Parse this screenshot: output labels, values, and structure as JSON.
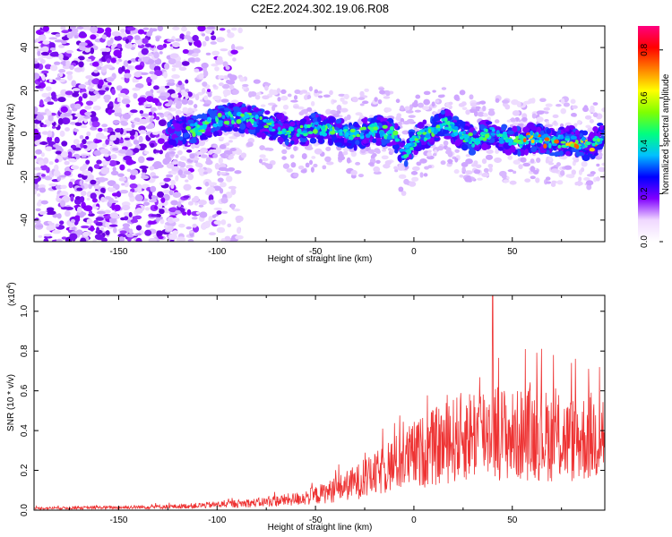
{
  "title": "C2E2.2024.302.19.06.R08",
  "chart_data": [
    {
      "type": "heatmap",
      "xlabel": "Height of straight line (km)",
      "ylabel": "Frequency (Hz)",
      "xlim": [
        -193,
        97
      ],
      "ylim": [
        -50,
        50
      ],
      "xticks": [
        -150,
        -100,
        -50,
        0,
        50
      ],
      "yticks": [
        -40,
        -20,
        0,
        20,
        40
      ],
      "colorbar": {
        "label": "Normalized spectral amplitude",
        "range": [
          0,
          0.9
        ],
        "ticks": [
          "0.0",
          "0.2",
          "0.4",
          "0.6",
          "0.8"
        ],
        "colormap": [
          "#ffffff",
          "#f0d8ff",
          "#8000ff",
          "#0000ff",
          "#00c0ff",
          "#00ff80",
          "#80ff00",
          "#ffff00",
          "#ff8000",
          "#ff0000",
          "#ff0080"
        ]
      },
      "ridge": {
        "x": [
          -125,
          -110,
          -100,
          -90,
          -80,
          -70,
          -60,
          -50,
          -40,
          -30,
          -20,
          -10,
          -5,
          0,
          10,
          15,
          20,
          30,
          40,
          50,
          60,
          70,
          80,
          90,
          95
        ],
        "y": [
          0,
          2,
          6,
          8,
          6,
          3,
          0,
          3,
          1,
          -1,
          2,
          0,
          -10,
          -3,
          2,
          6,
          2,
          -3,
          1,
          -4,
          -2,
          -4,
          -3,
          -6,
          -1
        ]
      },
      "noise_region_x": [
        -193,
        -125
      ],
      "grid": false
    },
    {
      "type": "line",
      "xlabel": "Height of straight line (km)",
      "ylabel": "SNR (10 * v/v)",
      "y_multiplier_label": "(x10",
      "y_multiplier_exp": "4",
      "y_multiplier_close": ")",
      "xlim": [
        -193,
        97
      ],
      "ylim": [
        0,
        1.08
      ],
      "xticks": [
        -150,
        -100,
        -50,
        0,
        50
      ],
      "yticks": [
        "0.0",
        "0.2",
        "0.4",
        "0.6",
        "0.8",
        "1.0"
      ],
      "color": "#ee3333",
      "envelope": {
        "x": [
          -193,
          -150,
          -120,
          -100,
          -80,
          -60,
          -50,
          -40,
          -30,
          -20,
          -10,
          0,
          10,
          20,
          30,
          40,
          50,
          60,
          70,
          80,
          90,
          97
        ],
        "y": [
          0.01,
          0.015,
          0.02,
          0.03,
          0.04,
          0.06,
          0.08,
          0.11,
          0.15,
          0.19,
          0.25,
          0.3,
          0.34,
          0.38,
          0.42,
          0.44,
          0.4,
          0.42,
          0.4,
          0.38,
          0.4,
          0.42
        ]
      },
      "spike": {
        "x": 40,
        "y": 1.08
      },
      "grid": false
    }
  ]
}
